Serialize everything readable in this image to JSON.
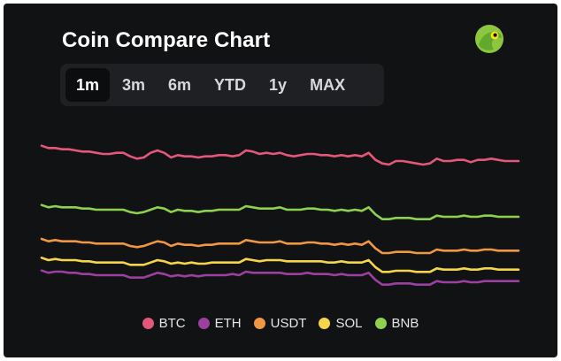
{
  "header": {
    "title": "Coin Compare Chart"
  },
  "logo": {
    "icon": "gecko-logo-icon",
    "colors": {
      "bg": "#8dc63f",
      "eye": "#ffe01b",
      "pupil": "#0f1115"
    }
  },
  "range": {
    "active": "1m",
    "options": [
      {
        "label": "1m"
      },
      {
        "label": "3m"
      },
      {
        "label": "6m"
      },
      {
        "label": "YTD"
      },
      {
        "label": "1y"
      },
      {
        "label": "MAX"
      }
    ]
  },
  "chart_data": {
    "type": "line",
    "title": "Coin Compare Chart",
    "xlabel": "",
    "ylabel": "",
    "x": [
      0,
      1,
      2,
      3,
      4,
      5,
      6,
      7,
      8,
      9,
      10,
      11,
      12,
      13,
      14,
      15,
      16,
      17,
      18,
      19,
      20,
      21,
      22,
      23,
      24,
      25,
      26,
      27,
      28,
      29,
      30,
      31,
      32,
      33,
      34,
      35,
      36,
      37,
      38,
      39,
      40,
      41,
      42,
      43,
      44,
      45,
      46,
      47,
      48,
      49,
      50,
      51,
      52,
      53,
      54,
      55,
      56,
      57,
      58,
      59,
      60,
      61,
      62,
      63,
      64,
      65,
      66,
      67,
      68,
      69,
      70
    ],
    "grid": false,
    "legend_position": "bottom",
    "series": [
      {
        "name": "BTC",
        "color": "#e2577a",
        "values": [
          0.92,
          0.9,
          0.9,
          0.89,
          0.89,
          0.88,
          0.87,
          0.87,
          0.86,
          0.85,
          0.85,
          0.86,
          0.86,
          0.83,
          0.81,
          0.82,
          0.86,
          0.88,
          0.86,
          0.82,
          0.84,
          0.83,
          0.83,
          0.82,
          0.83,
          0.83,
          0.84,
          0.84,
          0.83,
          0.84,
          0.88,
          0.87,
          0.85,
          0.86,
          0.85,
          0.86,
          0.84,
          0.83,
          0.84,
          0.85,
          0.85,
          0.84,
          0.84,
          0.83,
          0.84,
          0.83,
          0.84,
          0.83,
          0.86,
          0.8,
          0.77,
          0.76,
          0.79,
          0.79,
          0.78,
          0.77,
          0.76,
          0.77,
          0.81,
          0.79,
          0.79,
          0.8,
          0.8,
          0.78,
          0.8,
          0.8,
          0.81,
          0.8,
          0.79,
          0.79,
          0.79
        ]
      },
      {
        "name": "ETH",
        "color": "#9c3fa0",
        "values": [
          0.86,
          0.84,
          0.85,
          0.85,
          0.84,
          0.84,
          0.83,
          0.83,
          0.82,
          0.82,
          0.82,
          0.82,
          0.82,
          0.8,
          0.8,
          0.8,
          0.82,
          0.84,
          0.83,
          0.81,
          0.82,
          0.81,
          0.82,
          0.81,
          0.82,
          0.82,
          0.82,
          0.82,
          0.83,
          0.82,
          0.85,
          0.84,
          0.84,
          0.84,
          0.84,
          0.84,
          0.83,
          0.83,
          0.83,
          0.84,
          0.83,
          0.83,
          0.83,
          0.82,
          0.83,
          0.82,
          0.82,
          0.82,
          0.84,
          0.78,
          0.74,
          0.74,
          0.75,
          0.75,
          0.75,
          0.74,
          0.74,
          0.74,
          0.77,
          0.76,
          0.76,
          0.76,
          0.77,
          0.76,
          0.76,
          0.77,
          0.77,
          0.77,
          0.77,
          0.77,
          0.77
        ]
      },
      {
        "name": "USDT",
        "color": "#ef9743",
        "values": [
          0.88,
          0.86,
          0.87,
          0.86,
          0.86,
          0.86,
          0.85,
          0.85,
          0.84,
          0.84,
          0.84,
          0.84,
          0.84,
          0.82,
          0.81,
          0.82,
          0.84,
          0.86,
          0.85,
          0.82,
          0.84,
          0.83,
          0.83,
          0.82,
          0.83,
          0.83,
          0.84,
          0.84,
          0.84,
          0.84,
          0.87,
          0.86,
          0.85,
          0.85,
          0.85,
          0.86,
          0.84,
          0.84,
          0.84,
          0.85,
          0.85,
          0.84,
          0.84,
          0.83,
          0.84,
          0.83,
          0.84,
          0.83,
          0.86,
          0.8,
          0.76,
          0.76,
          0.77,
          0.77,
          0.77,
          0.76,
          0.76,
          0.76,
          0.79,
          0.78,
          0.78,
          0.78,
          0.79,
          0.78,
          0.78,
          0.79,
          0.79,
          0.78,
          0.78,
          0.78,
          0.78
        ]
      },
      {
        "name": "SOL",
        "color": "#f5d64a",
        "values": [
          0.87,
          0.85,
          0.86,
          0.85,
          0.85,
          0.85,
          0.84,
          0.84,
          0.83,
          0.83,
          0.83,
          0.83,
          0.83,
          0.81,
          0.81,
          0.81,
          0.83,
          0.85,
          0.84,
          0.82,
          0.83,
          0.82,
          0.83,
          0.82,
          0.82,
          0.83,
          0.83,
          0.83,
          0.83,
          0.83,
          0.86,
          0.85,
          0.84,
          0.85,
          0.85,
          0.85,
          0.84,
          0.84,
          0.84,
          0.84,
          0.84,
          0.84,
          0.83,
          0.83,
          0.84,
          0.83,
          0.83,
          0.83,
          0.85,
          0.79,
          0.75,
          0.75,
          0.76,
          0.76,
          0.76,
          0.75,
          0.75,
          0.75,
          0.78,
          0.77,
          0.77,
          0.77,
          0.78,
          0.77,
          0.77,
          0.78,
          0.78,
          0.77,
          0.77,
          0.77,
          0.77
        ]
      },
      {
        "name": "BNB",
        "color": "#8dd14f",
        "values": [
          0.89,
          0.87,
          0.88,
          0.87,
          0.87,
          0.87,
          0.86,
          0.86,
          0.85,
          0.85,
          0.85,
          0.85,
          0.85,
          0.83,
          0.82,
          0.83,
          0.85,
          0.87,
          0.86,
          0.83,
          0.85,
          0.84,
          0.84,
          0.83,
          0.84,
          0.84,
          0.85,
          0.85,
          0.85,
          0.85,
          0.88,
          0.87,
          0.86,
          0.86,
          0.86,
          0.87,
          0.85,
          0.85,
          0.85,
          0.86,
          0.86,
          0.85,
          0.85,
          0.84,
          0.85,
          0.84,
          0.85,
          0.84,
          0.87,
          0.81,
          0.77,
          0.77,
          0.78,
          0.78,
          0.78,
          0.77,
          0.77,
          0.77,
          0.8,
          0.79,
          0.79,
          0.79,
          0.8,
          0.79,
          0.79,
          0.8,
          0.8,
          0.79,
          0.79,
          0.79,
          0.79
        ]
      }
    ]
  }
}
